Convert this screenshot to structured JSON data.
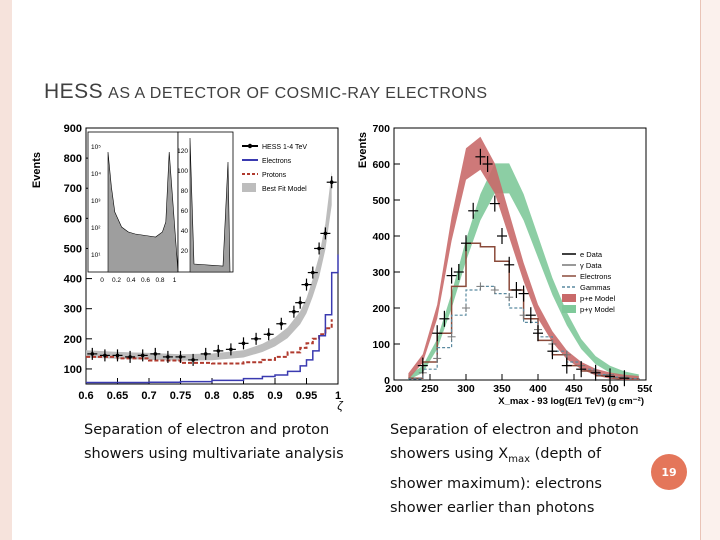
{
  "slide": {
    "title_part1": "HESS",
    "title_part2": "AS A DETECTOR OF COSMIC-RAY ELECTRONS",
    "caption_left": "Separation of electron and proton showers using multivariate analysis",
    "caption_right_pre": "Separation of electron and photon showers using X",
    "caption_right_sub": "max",
    "caption_right_post": " (depth of shower maximum): electrons shower earlier than photons",
    "page_number": "19"
  },
  "colors": {
    "frame": "#f6e3dc",
    "accent_circle": "#e4765a",
    "title_text": "#404040"
  },
  "chart_data": [
    {
      "type": "line",
      "ylabel": "Events",
      "xlabel": "ζ",
      "xlim": [
        0.6,
        1.0
      ],
      "ylim": [
        50,
        900
      ],
      "x_ticks": [
        "0.6",
        "0.65",
        "0.7",
        "0.75",
        "0.8",
        "0.85",
        "0.9",
        "0.95",
        "1"
      ],
      "y_ticks": [
        "100",
        "200",
        "300",
        "400",
        "500",
        "600",
        "700",
        "800",
        "900"
      ],
      "legend": [
        "HESS 1-4 TeV",
        "Electrons",
        "Protons",
        "Best Fit Model"
      ],
      "legend_position": "top-right",
      "series": [
        {
          "name": "HESS 1-4 TeV",
          "x": [
            0.61,
            0.63,
            0.65,
            0.67,
            0.69,
            0.71,
            0.73,
            0.75,
            0.77,
            0.79,
            0.81,
            0.83,
            0.85,
            0.87,
            0.89,
            0.91,
            0.93,
            0.94,
            0.95,
            0.96,
            0.97,
            0.98,
            0.99
          ],
          "y": [
            150,
            145,
            145,
            140,
            145,
            150,
            140,
            140,
            130,
            150,
            160,
            165,
            185,
            200,
            215,
            250,
            290,
            320,
            380,
            420,
            500,
            550,
            720
          ]
        },
        {
          "name": "Electrons",
          "x": [
            0.6,
            0.65,
            0.7,
            0.75,
            0.8,
            0.85,
            0.88,
            0.9,
            0.92,
            0.94,
            0.95,
            0.96,
            0.97,
            0.98,
            0.99,
            1.0
          ],
          "y": [
            55,
            55,
            56,
            58,
            62,
            68,
            75,
            80,
            92,
            110,
            130,
            160,
            210,
            280,
            420,
            480
          ]
        },
        {
          "name": "Protons",
          "x": [
            0.6,
            0.65,
            0.7,
            0.75,
            0.8,
            0.85,
            0.88,
            0.9,
            0.92,
            0.94,
            0.95,
            0.96,
            0.97,
            0.98,
            0.99
          ],
          "y": [
            140,
            135,
            128,
            120,
            118,
            122,
            130,
            140,
            155,
            170,
            185,
            200,
            215,
            235,
            265
          ]
        },
        {
          "name": "Best Fit Model",
          "x": [
            0.6,
            0.65,
            0.7,
            0.75,
            0.8,
            0.85,
            0.88,
            0.9,
            0.92,
            0.94,
            0.95,
            0.96,
            0.97,
            0.98,
            0.99
          ],
          "y": [
            150,
            145,
            142,
            138,
            140,
            150,
            170,
            190,
            220,
            270,
            310,
            370,
            440,
            540,
            700
          ]
        }
      ],
      "inset": {
        "type": "line",
        "x_ticks": [
          "0",
          "0.2",
          "0.4",
          "0.6",
          "0.8",
          "1"
        ],
        "y_ticks_log": [
          "10¹",
          "10²",
          "10³",
          "10⁴",
          "10⁵"
        ],
        "y_ticks_lin": [
          "20",
          "40",
          "60",
          "80",
          "100",
          "120"
        ]
      }
    },
    {
      "type": "line",
      "ylabel": "Events",
      "xlabel": "X_max - 93 log(E/1 TeV) (g cm⁻²)",
      "xlim": [
        200,
        550
      ],
      "ylim": [
        0,
        700
      ],
      "x_ticks": [
        "200",
        "250",
        "300",
        "350",
        "400",
        "450",
        "500",
        "550"
      ],
      "y_ticks": [
        "0",
        "100",
        "200",
        "300",
        "400",
        "500",
        "600",
        "700"
      ],
      "legend": [
        "e Data",
        "γ Data",
        "Electrons",
        "Gammas",
        "p+e Model",
        "p+γ Model"
      ],
      "legend_position": "right",
      "series": [
        {
          "name": "e Data",
          "x": [
            240,
            260,
            270,
            280,
            290,
            300,
            310,
            320,
            330,
            340,
            350,
            360,
            370,
            380,
            390,
            400,
            420,
            440,
            460,
            480,
            500,
            520
          ],
          "y": [
            40,
            130,
            170,
            290,
            300,
            380,
            470,
            620,
            600,
            490,
            400,
            320,
            250,
            240,
            180,
            130,
            80,
            40,
            30,
            20,
            10,
            5
          ]
        },
        {
          "name": "γ Data",
          "x": [
            240,
            260,
            280,
            300,
            320,
            340,
            360,
            380,
            400,
            420,
            440,
            460,
            480,
            500,
            520
          ],
          "y": [
            20,
            60,
            120,
            200,
            260,
            250,
            230,
            180,
            140,
            100,
            70,
            40,
            25,
            15,
            8
          ]
        },
        {
          "name": "Electrons",
          "x": [
            220,
            240,
            260,
            280,
            300,
            320,
            340,
            360,
            380,
            400,
            420,
            440,
            460,
            480,
            500,
            520,
            540
          ],
          "y": [
            5,
            50,
            130,
            260,
            380,
            370,
            330,
            250,
            170,
            110,
            70,
            40,
            25,
            12,
            6,
            3,
            1
          ]
        },
        {
          "name": "Gammas",
          "x": [
            220,
            240,
            260,
            280,
            300,
            320,
            340,
            360,
            380,
            400,
            420,
            440,
            460,
            480,
            500,
            520,
            540
          ],
          "y": [
            3,
            30,
            90,
            180,
            250,
            260,
            240,
            200,
            160,
            120,
            80,
            50,
            30,
            15,
            8,
            4,
            2
          ]
        },
        {
          "name": "p+e Model",
          "x": [
            220,
            240,
            260,
            280,
            300,
            320,
            340,
            360,
            380,
            400,
            420,
            440,
            460,
            480,
            500,
            520,
            540
          ],
          "y": [
            10,
            60,
            190,
            420,
            600,
            630,
            560,
            430,
            300,
            190,
            120,
            70,
            40,
            22,
            12,
            6,
            3
          ]
        },
        {
          "name": "p+γ Model",
          "x": [
            220,
            240,
            260,
            280,
            300,
            320,
            340,
            360,
            380,
            400,
            420,
            440,
            460,
            480,
            500,
            520,
            540
          ],
          "y": [
            5,
            30,
            100,
            220,
            360,
            480,
            560,
            560,
            480,
            370,
            260,
            170,
            100,
            55,
            30,
            15,
            7
          ]
        }
      ]
    }
  ]
}
